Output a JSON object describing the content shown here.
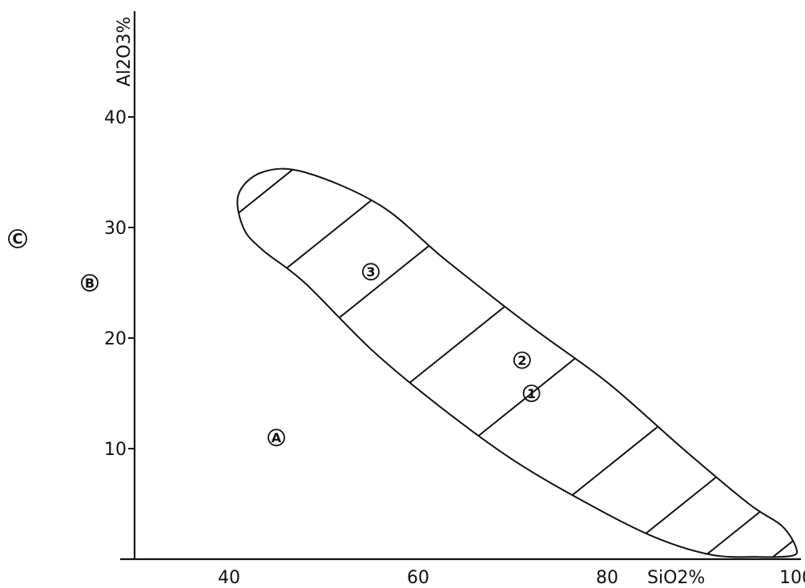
{
  "chart_data": {
    "type": "area",
    "title": "",
    "xlabel": "SiO2%",
    "ylabel": "Al2O3%",
    "xlim": [
      30,
      102
    ],
    "ylim": [
      0,
      47
    ],
    "x_ticks": [
      40,
      60,
      80,
      100
    ],
    "y_ticks": [
      10,
      20,
      30,
      40
    ],
    "grid": false,
    "region": {
      "outline": [
        [
          41.5,
          30
        ],
        [
          41.0,
          33
        ],
        [
          43.5,
          35
        ],
        [
          48.0,
          35
        ],
        [
          56.0,
          32
        ],
        [
          63.0,
          27
        ],
        [
          72.0,
          21
        ],
        [
          80.0,
          16
        ],
        [
          88.0,
          10
        ],
        [
          95.0,
          5
        ],
        [
          98.5,
          3
        ],
        [
          100.0,
          1
        ],
        [
          99.5,
          0.3
        ],
        [
          96.0,
          0.2
        ],
        [
          91.0,
          0.4
        ],
        [
          85.0,
          2
        ],
        [
          78.0,
          5
        ],
        [
          70.0,
          9
        ],
        [
          62.0,
          14
        ],
        [
          55.0,
          19
        ],
        [
          48.0,
          25
        ],
        [
          43.5,
          28
        ]
      ],
      "hatch": "diagonal"
    },
    "markers": [
      {
        "label": "A",
        "x": 45,
        "y": 11
      },
      {
        "label": "B",
        "y": 25
      },
      {
        "label": "1",
        "x": 72,
        "y": 15
      },
      {
        "label": "2",
        "x": 71,
        "y": 18
      },
      {
        "label": "3",
        "x": 55,
        "y": 26
      }
    ],
    "outside_markers": [
      {
        "label": "C",
        "y": 30
      }
    ]
  }
}
